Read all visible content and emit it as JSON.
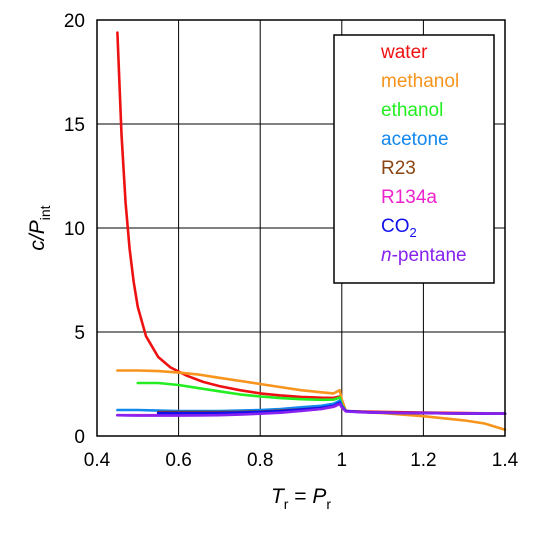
{
  "chart_data": {
    "type": "line",
    "ylabel": {
      "main": "c/P",
      "sub": "int"
    },
    "xlabel": {
      "left_main": "T",
      "left_sub": "r",
      "mid": " = ",
      "right_main": "P",
      "right_sub": "r"
    },
    "xlim": [
      0.4,
      1.4
    ],
    "ylim": [
      0,
      20
    ],
    "xticks": [
      "0.4",
      "0.6",
      "0.8",
      "1",
      "1.2",
      "1.4"
    ],
    "yticks": [
      "0",
      "5",
      "10",
      "15",
      "20"
    ],
    "grid": true,
    "legend_position": "top-right",
    "series": [
      {
        "name": "water",
        "color": "#ee1111",
        "points": [
          [
            0.45,
            19.4
          ],
          [
            0.46,
            14.5
          ],
          [
            0.47,
            11.2
          ],
          [
            0.48,
            9.0
          ],
          [
            0.49,
            7.4
          ],
          [
            0.5,
            6.2
          ],
          [
            0.52,
            4.8
          ],
          [
            0.55,
            3.8
          ],
          [
            0.58,
            3.3
          ],
          [
            0.62,
            2.9
          ],
          [
            0.66,
            2.6
          ],
          [
            0.7,
            2.4
          ],
          [
            0.75,
            2.2
          ],
          [
            0.8,
            2.05
          ],
          [
            0.85,
            1.95
          ],
          [
            0.9,
            1.88
          ],
          [
            0.95,
            1.84
          ],
          [
            0.98,
            1.83
          ],
          [
            0.995,
            1.9
          ],
          [
            1.0,
            1.55
          ],
          [
            1.01,
            1.2
          ],
          [
            1.05,
            1.18
          ],
          [
            1.1,
            1.16
          ],
          [
            1.2,
            1.13
          ],
          [
            1.3,
            1.1
          ],
          [
            1.4,
            1.08
          ]
        ]
      },
      {
        "name": "methanol",
        "color": "#f7941d",
        "points": [
          [
            0.45,
            3.15
          ],
          [
            0.5,
            3.15
          ],
          [
            0.55,
            3.12
          ],
          [
            0.6,
            3.05
          ],
          [
            0.65,
            2.95
          ],
          [
            0.7,
            2.8
          ],
          [
            0.75,
            2.65
          ],
          [
            0.8,
            2.5
          ],
          [
            0.85,
            2.35
          ],
          [
            0.9,
            2.2
          ],
          [
            0.95,
            2.1
          ],
          [
            0.98,
            2.05
          ],
          [
            0.995,
            2.2
          ],
          [
            1.0,
            1.75
          ],
          [
            1.01,
            1.2
          ],
          [
            1.05,
            1.15
          ],
          [
            1.1,
            1.1
          ],
          [
            1.2,
            0.95
          ],
          [
            1.3,
            0.75
          ],
          [
            1.35,
            0.6
          ],
          [
            1.4,
            0.3
          ]
        ]
      },
      {
        "name": "ethanol",
        "color": "#22ee22",
        "points": [
          [
            0.5,
            2.55
          ],
          [
            0.55,
            2.55
          ],
          [
            0.6,
            2.45
          ],
          [
            0.65,
            2.3
          ],
          [
            0.7,
            2.15
          ],
          [
            0.75,
            2.0
          ],
          [
            0.8,
            1.9
          ],
          [
            0.85,
            1.82
          ],
          [
            0.9,
            1.77
          ],
          [
            0.95,
            1.74
          ],
          [
            0.98,
            1.75
          ],
          [
            0.995,
            1.85
          ],
          [
            1.0,
            1.5
          ],
          [
            1.01,
            1.2
          ],
          [
            1.05,
            1.15
          ],
          [
            1.1,
            1.12
          ],
          [
            1.2,
            1.1
          ],
          [
            1.3,
            1.08
          ],
          [
            1.4,
            1.07
          ]
        ]
      },
      {
        "name": "acetone",
        "color": "#1188ee",
        "points": [
          [
            0.45,
            1.25
          ],
          [
            0.5,
            1.25
          ],
          [
            0.55,
            1.22
          ],
          [
            0.6,
            1.2
          ],
          [
            0.65,
            1.2
          ],
          [
            0.7,
            1.2
          ],
          [
            0.75,
            1.22
          ],
          [
            0.8,
            1.25
          ],
          [
            0.85,
            1.3
          ],
          [
            0.9,
            1.38
          ],
          [
            0.95,
            1.45
          ],
          [
            0.98,
            1.55
          ],
          [
            0.995,
            1.7
          ],
          [
            1.0,
            1.45
          ],
          [
            1.01,
            1.2
          ],
          [
            1.05,
            1.15
          ],
          [
            1.1,
            1.12
          ],
          [
            1.2,
            1.1
          ],
          [
            1.3,
            1.08
          ],
          [
            1.4,
            1.07
          ]
        ]
      },
      {
        "name": "R23",
        "color": "#8b4513",
        "points": [
          [
            0.55,
            1.15
          ],
          [
            0.6,
            1.15
          ],
          [
            0.65,
            1.15
          ],
          [
            0.7,
            1.15
          ],
          [
            0.75,
            1.16
          ],
          [
            0.8,
            1.18
          ],
          [
            0.85,
            1.22
          ],
          [
            0.9,
            1.28
          ],
          [
            0.95,
            1.35
          ],
          [
            0.98,
            1.42
          ],
          [
            0.995,
            1.55
          ],
          [
            1.0,
            1.4
          ],
          [
            1.01,
            1.2
          ],
          [
            1.05,
            1.15
          ],
          [
            1.1,
            1.12
          ],
          [
            1.2,
            1.1
          ],
          [
            1.3,
            1.08
          ],
          [
            1.4,
            1.07
          ]
        ]
      },
      {
        "name": "R134a",
        "color": "#ee22cc",
        "points": [
          [
            0.45,
            1.0
          ],
          [
            0.5,
            1.0
          ],
          [
            0.55,
            1.0
          ],
          [
            0.6,
            1.0
          ],
          [
            0.65,
            1.02
          ],
          [
            0.7,
            1.04
          ],
          [
            0.75,
            1.07
          ],
          [
            0.8,
            1.1
          ],
          [
            0.85,
            1.15
          ],
          [
            0.9,
            1.22
          ],
          [
            0.95,
            1.3
          ],
          [
            0.98,
            1.4
          ],
          [
            0.995,
            1.55
          ],
          [
            1.0,
            1.4
          ],
          [
            1.01,
            1.2
          ],
          [
            1.05,
            1.15
          ],
          [
            1.1,
            1.12
          ],
          [
            1.2,
            1.1
          ],
          [
            1.3,
            1.08
          ],
          [
            1.4,
            1.07
          ]
        ]
      },
      {
        "name": "CO2",
        "color": "#1111ee",
        "points": [
          [
            0.55,
            1.1
          ],
          [
            0.6,
            1.1
          ],
          [
            0.65,
            1.1
          ],
          [
            0.7,
            1.11
          ],
          [
            0.75,
            1.13
          ],
          [
            0.8,
            1.16
          ],
          [
            0.85,
            1.2
          ],
          [
            0.9,
            1.27
          ],
          [
            0.95,
            1.35
          ],
          [
            0.98,
            1.45
          ],
          [
            0.995,
            1.6
          ],
          [
            1.0,
            1.4
          ],
          [
            1.01,
            1.2
          ],
          [
            1.05,
            1.15
          ],
          [
            1.1,
            1.12
          ],
          [
            1.2,
            1.1
          ],
          [
            1.3,
            1.08
          ],
          [
            1.4,
            1.07
          ]
        ]
      },
      {
        "name": "n-pentane",
        "color": "#8822ee",
        "points": [
          [
            0.45,
            1.0
          ],
          [
            0.5,
            0.98
          ],
          [
            0.55,
            0.98
          ],
          [
            0.6,
            0.98
          ],
          [
            0.65,
            0.99
          ],
          [
            0.7,
            1.0
          ],
          [
            0.75,
            1.03
          ],
          [
            0.8,
            1.07
          ],
          [
            0.85,
            1.12
          ],
          [
            0.9,
            1.2
          ],
          [
            0.95,
            1.3
          ],
          [
            0.98,
            1.42
          ],
          [
            0.995,
            1.55
          ],
          [
            1.0,
            1.38
          ],
          [
            1.01,
            1.18
          ],
          [
            1.05,
            1.14
          ],
          [
            1.1,
            1.12
          ],
          [
            1.2,
            1.1
          ],
          [
            1.3,
            1.08
          ],
          [
            1.4,
            1.07
          ]
        ]
      }
    ],
    "legend": [
      {
        "label": "water",
        "color": "#ee1111"
      },
      {
        "label": "methanol",
        "color": "#f7941d"
      },
      {
        "label": "ethanol",
        "color": "#22ee22"
      },
      {
        "label": "acetone",
        "color": "#1188ee"
      },
      {
        "label": "R23",
        "color": "#8b4513"
      },
      {
        "label": "R134a",
        "color": "#ee22cc"
      },
      {
        "label": "CO",
        "sub": "2",
        "color": "#1111ee"
      },
      {
        "label": "-pentane",
        "prefix_italic": "n",
        "color": "#8822ee"
      }
    ]
  }
}
